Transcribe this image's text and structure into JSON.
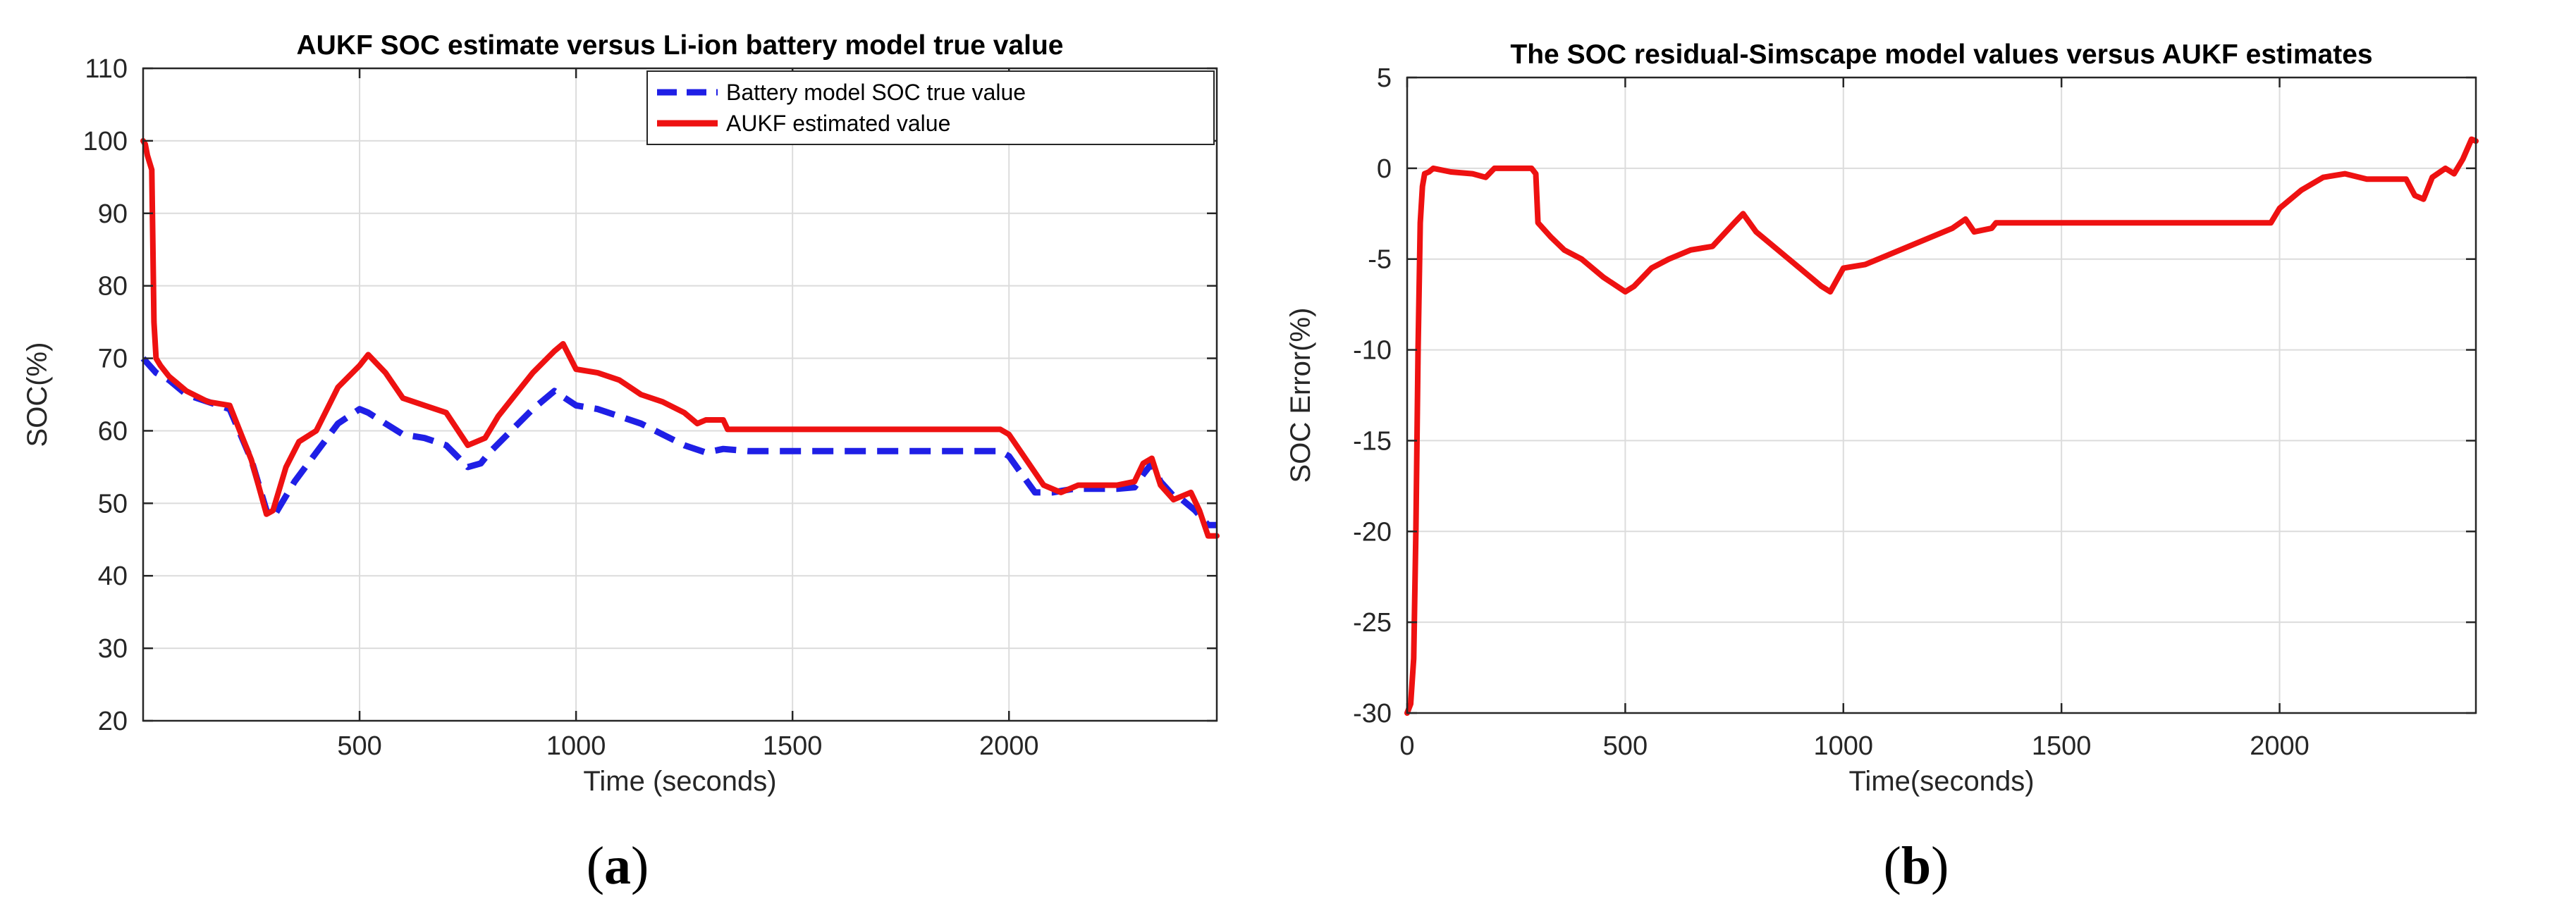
{
  "chart_data": [
    {
      "type": "line",
      "title": "AUKF SOC estimate versus Li-ion battery model true value",
      "xlabel": "Time (seconds)",
      "ylabel": "SOC(%)",
      "xlim": [
        0,
        2480
      ],
      "ylim": [
        20,
        110
      ],
      "xticks": [
        500,
        1000,
        1500,
        2000
      ],
      "yticks": [
        20,
        30,
        40,
        50,
        60,
        70,
        80,
        90,
        100,
        110
      ],
      "grid": true,
      "legend_position": "top-right",
      "series": [
        {
          "name": "Battery model SOC true value",
          "color": "#1f1fe6",
          "style": "dashed",
          "x": [
            0,
            30,
            60,
            100,
            150,
            200,
            250,
            285,
            300,
            320,
            350,
            400,
            450,
            500,
            520,
            560,
            600,
            650,
            700,
            750,
            780,
            800,
            850,
            900,
            950,
            1000,
            1050,
            1100,
            1150,
            1200,
            1250,
            1300,
            1340,
            1400,
            1500,
            1600,
            1700,
            1800,
            1900,
            1980,
            2000,
            2030,
            2060,
            2100,
            2150,
            2200,
            2250,
            2290,
            2310,
            2330,
            2350,
            2380,
            2400,
            2430,
            2460,
            2480
          ],
          "values": [
            70,
            68,
            67,
            65,
            64,
            63,
            56,
            49,
            48,
            50,
            53,
            57,
            61,
            63,
            62.5,
            61,
            59.5,
            59,
            58,
            55,
            55.5,
            57,
            60,
            63,
            65.5,
            63.5,
            63,
            62,
            61,
            59.5,
            58,
            57,
            57.5,
            57.2,
            57.2,
            57.2,
            57.2,
            57.2,
            57.2,
            57.2,
            56.5,
            54,
            51.5,
            51.5,
            52,
            52,
            52,
            52.2,
            54,
            55.5,
            53,
            51,
            50.5,
            49,
            47,
            47
          ]
        },
        {
          "name": "AUKF estimated value",
          "color": "#ee1111",
          "style": "solid",
          "x": [
            0,
            5,
            10,
            15,
            20,
            25,
            30,
            40,
            60,
            100,
            150,
            200,
            250,
            285,
            300,
            330,
            360,
            400,
            450,
            500,
            520,
            560,
            600,
            650,
            700,
            750,
            790,
            820,
            860,
            900,
            950,
            970,
            1000,
            1050,
            1100,
            1150,
            1200,
            1250,
            1280,
            1300,
            1340,
            1350,
            1400,
            1500,
            1600,
            1700,
            1800,
            1900,
            1980,
            2000,
            2040,
            2080,
            2120,
            2160,
            2200,
            2250,
            2290,
            2310,
            2330,
            2350,
            2380,
            2400,
            2420,
            2440,
            2460,
            2480
          ],
          "values": [
            100,
            99.5,
            98,
            97,
            96,
            75,
            70,
            69,
            67.5,
            65.5,
            64,
            63.5,
            56,
            48.5,
            49,
            55,
            58.5,
            60,
            66,
            69,
            70.5,
            68,
            64.5,
            63.5,
            62.5,
            58,
            59,
            62,
            65,
            68,
            71,
            72,
            68.5,
            68,
            67,
            65,
            64,
            62.5,
            61,
            61.5,
            61.5,
            60.2,
            60.2,
            60.2,
            60.2,
            60.2,
            60.2,
            60.2,
            60.2,
            59.5,
            56,
            52.5,
            51.5,
            52.5,
            52.5,
            52.5,
            53,
            55.5,
            56.2,
            52.5,
            50.5,
            51,
            51.5,
            49,
            45.5,
            45.5
          ]
        }
      ]
    },
    {
      "type": "line",
      "title": "The SOC residual-Simscape model values versus AUKF estimates",
      "xlabel": "Time(seconds)",
      "ylabel": "SOC Error(%)",
      "xlim": [
        0,
        2450
      ],
      "ylim": [
        -30,
        5
      ],
      "xticks": [
        0,
        500,
        1000,
        1500,
        2000
      ],
      "yticks": [
        -30,
        -25,
        -20,
        -15,
        -10,
        -5,
        0,
        5
      ],
      "grid": true,
      "series": [
        {
          "name": "SOC residual",
          "color": "#ee1111",
          "style": "solid",
          "x": [
            0,
            8,
            15,
            20,
            25,
            30,
            35,
            40,
            50,
            60,
            100,
            150,
            180,
            200,
            250,
            285,
            295,
            300,
            330,
            360,
            400,
            450,
            500,
            520,
            560,
            600,
            650,
            700,
            750,
            770,
            800,
            850,
            900,
            950,
            970,
            1000,
            1050,
            1100,
            1150,
            1200,
            1250,
            1280,
            1300,
            1340,
            1350,
            1400,
            1500,
            1600,
            1700,
            1800,
            1900,
            1980,
            2000,
            2050,
            2100,
            2150,
            2200,
            2250,
            2290,
            2310,
            2330,
            2350,
            2380,
            2400,
            2420,
            2440,
            2450
          ],
          "values": [
            -30,
            -29.5,
            -27,
            -20,
            -10,
            -3,
            -1,
            -0.3,
            -0.2,
            0,
            -0.2,
            -0.3,
            -0.5,
            0,
            0,
            0,
            -0.3,
            -3,
            -3.8,
            -4.5,
            -5,
            -6,
            -6.8,
            -6.5,
            -5.5,
            -5,
            -4.5,
            -4.3,
            -3,
            -2.5,
            -3.5,
            -4.5,
            -5.5,
            -6.5,
            -6.8,
            -5.5,
            -5.3,
            -4.8,
            -4.3,
            -3.8,
            -3.3,
            -2.8,
            -3.5,
            -3.3,
            -3,
            -3,
            -3,
            -3,
            -3,
            -3,
            -3,
            -3,
            -2.2,
            -1.2,
            -0.5,
            -0.3,
            -0.6,
            -0.6,
            -0.6,
            -1.5,
            -1.7,
            -0.5,
            0,
            -0.3,
            0.5,
            1.6,
            1.5
          ]
        }
      ]
    }
  ],
  "captions": [
    {
      "open": "(",
      "letter": "a",
      "close": ")"
    },
    {
      "open": "(",
      "letter": "b",
      "close": ")"
    }
  ]
}
